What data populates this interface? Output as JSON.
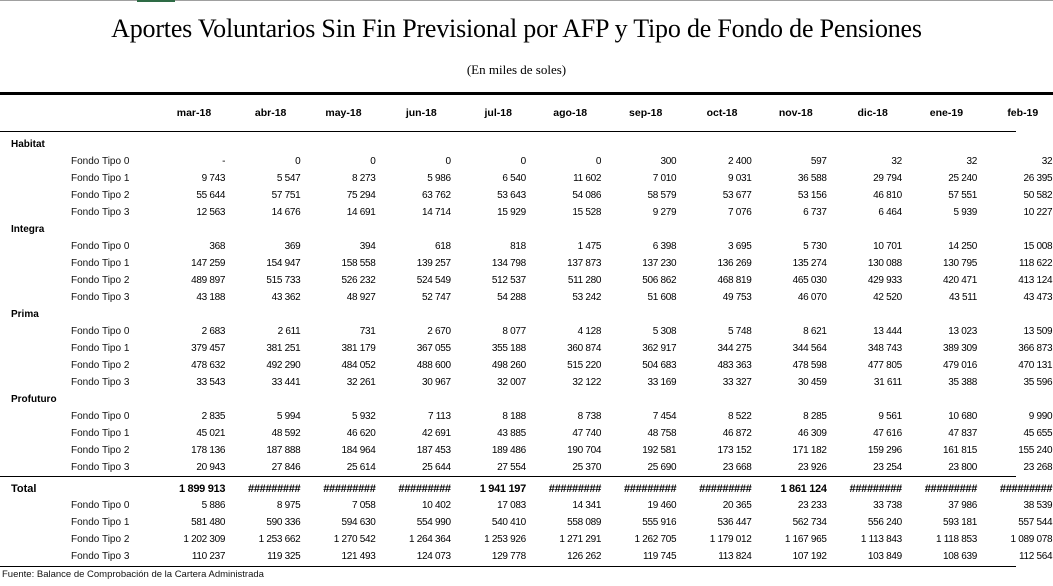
{
  "title": "Aportes Voluntarios Sin Fin Previsional por AFP y Tipo de Fondo de Pensiones",
  "subtitle": "(En miles de soles)",
  "columns": [
    "mar-18",
    "abr-18",
    "may-18",
    "jun-18",
    "jul-18",
    "ago-18",
    "sep-18",
    "oct-18",
    "nov-18",
    "dic-18",
    "ene-19",
    "feb-19"
  ],
  "groups": [
    {
      "name": "Habitat",
      "rows": [
        {
          "label": "Fondo Tipo 0",
          "values": [
            "-",
            "0",
            "0",
            "0",
            "0",
            "0",
            "300",
            "2 400",
            "597",
            "32",
            "32",
            "32"
          ]
        },
        {
          "label": "Fondo Tipo 1",
          "values": [
            "9 743",
            "5 547",
            "8 273",
            "5 986",
            "6 540",
            "11 602",
            "7 010",
            "9 031",
            "36 588",
            "29 794",
            "25 240",
            "26 395"
          ]
        },
        {
          "label": "Fondo Tipo 2",
          "values": [
            "55 644",
            "57 751",
            "75 294",
            "63 762",
            "53 643",
            "54 086",
            "58 579",
            "53 677",
            "53 156",
            "46 810",
            "57 551",
            "50 582"
          ]
        },
        {
          "label": "Fondo Tipo 3",
          "values": [
            "12 563",
            "14 676",
            "14 691",
            "14 714",
            "15 929",
            "15 528",
            "9 279",
            "7 076",
            "6 737",
            "6 464",
            "5 939",
            "10 227"
          ]
        }
      ]
    },
    {
      "name": "Integra",
      "rows": [
        {
          "label": "Fondo Tipo 0",
          "values": [
            "368",
            "369",
            "394",
            "618",
            "818",
            "1 475",
            "6 398",
            "3 695",
            "5 730",
            "10 701",
            "14 250",
            "15 008"
          ]
        },
        {
          "label": "Fondo Tipo 1",
          "values": [
            "147 259",
            "154 947",
            "158 558",
            "139 257",
            "134 798",
            "137 873",
            "137 230",
            "136 269",
            "135 274",
            "130 088",
            "130 795",
            "118 622"
          ]
        },
        {
          "label": "Fondo Tipo 2",
          "values": [
            "489 897",
            "515 733",
            "526 232",
            "524 549",
            "512 537",
            "511 280",
            "506 862",
            "468 819",
            "465 030",
            "429 933",
            "420 471",
            "413 124"
          ]
        },
        {
          "label": "Fondo Tipo 3",
          "values": [
            "43 188",
            "43 362",
            "48 927",
            "52 747",
            "54 288",
            "53 242",
            "51 608",
            "49 753",
            "46 070",
            "42 520",
            "43 511",
            "43 473"
          ]
        }
      ]
    },
    {
      "name": "Prima",
      "rows": [
        {
          "label": "Fondo Tipo 0",
          "values": [
            "2 683",
            "2 611",
            "731",
            "2 670",
            "8 077",
            "4 128",
            "5 308",
            "5 748",
            "8 621",
            "13 444",
            "13 023",
            "13 509"
          ]
        },
        {
          "label": "Fondo Tipo 1",
          "values": [
            "379 457",
            "381 251",
            "381 179",
            "367 055",
            "355 188",
            "360 874",
            "362 917",
            "344 275",
            "344 564",
            "348 743",
            "389 309",
            "366 873"
          ]
        },
        {
          "label": "Fondo Tipo 2",
          "values": [
            "478 632",
            "492 290",
            "484 052",
            "488 600",
            "498 260",
            "515 220",
            "504 683",
            "483 363",
            "478 598",
            "477 805",
            "479 016",
            "470 131"
          ]
        },
        {
          "label": "Fondo Tipo 3",
          "values": [
            "33 543",
            "33 441",
            "32 261",
            "30 967",
            "32 007",
            "32 122",
            "33 169",
            "33 327",
            "30 459",
            "31 611",
            "35 388",
            "35 596"
          ]
        }
      ]
    },
    {
      "name": "Profuturo",
      "rows": [
        {
          "label": "Fondo Tipo 0",
          "values": [
            "2 835",
            "5 994",
            "5 932",
            "7 113",
            "8 188",
            "8 738",
            "7 454",
            "8 522",
            "8 285",
            "9 561",
            "10 680",
            "9 990"
          ]
        },
        {
          "label": "Fondo Tipo 1",
          "values": [
            "45 021",
            "48 592",
            "46 620",
            "42 691",
            "43 885",
            "47 740",
            "48 758",
            "46 872",
            "46 309",
            "47 616",
            "47 837",
            "45 655"
          ]
        },
        {
          "label": "Fondo Tipo 2",
          "values": [
            "178 136",
            "187 888",
            "184 964",
            "187 453",
            "189 486",
            "190 704",
            "192 581",
            "173 152",
            "171 182",
            "159 296",
            "161 815",
            "155 240"
          ]
        },
        {
          "label": "Fondo Tipo 3",
          "values": [
            "20 943",
            "27 846",
            "25 614",
            "25 644",
            "27 554",
            "25 370",
            "25 690",
            "23 668",
            "23 926",
            "23 254",
            "23 800",
            "23 268"
          ]
        }
      ]
    }
  ],
  "total": {
    "name": "Total",
    "values": [
      "1 899 913",
      "#########",
      "#########",
      "#########",
      "1 941 197",
      "#########",
      "#########",
      "#########",
      "1 861 124",
      "#########",
      "#########",
      "#########"
    ],
    "rows": [
      {
        "label": "Fondo Tipo 0",
        "values": [
          "5 886",
          "8 975",
          "7 058",
          "10 402",
          "17 083",
          "14 341",
          "19 460",
          "20 365",
          "23 233",
          "33 738",
          "37 986",
          "38 539"
        ]
      },
      {
        "label": "Fondo Tipo 1",
        "values": [
          "581 480",
          "590 336",
          "594 630",
          "554 990",
          "540 410",
          "558 089",
          "555 916",
          "536 447",
          "562 734",
          "556 240",
          "593 181",
          "557 544"
        ]
      },
      {
        "label": "Fondo Tipo 2",
        "values": [
          "1 202 309",
          "1 253 662",
          "1 270 542",
          "1 264 364",
          "1 253 926",
          "1 271 291",
          "1 262 705",
          "1 179 012",
          "1 167 965",
          "1 113 843",
          "1 118 853",
          "1 089 078"
        ]
      },
      {
        "label": "Fondo Tipo 3",
        "values": [
          "110 237",
          "119 325",
          "121 493",
          "124 073",
          "129 778",
          "126 262",
          "119 745",
          "113 824",
          "107 192",
          "103 849",
          "108 639",
          "112 564"
        ]
      }
    ]
  },
  "footer": "Fuente: Balance de Comprobación de la Cartera Administrada"
}
